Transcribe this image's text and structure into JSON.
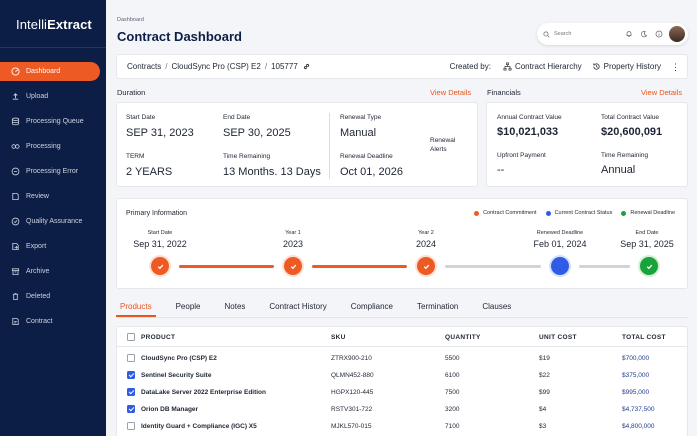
{
  "app": {
    "logo_light": "Intelli",
    "logo_bold": "Extract"
  },
  "sidebar": {
    "items": [
      {
        "label": "Dashboard",
        "icon": "dashboard-icon",
        "active": true
      },
      {
        "label": "Upload",
        "icon": "upload-icon"
      },
      {
        "label": "Processing Queue",
        "icon": "queue-icon"
      },
      {
        "label": "Processing",
        "icon": "processing-icon"
      },
      {
        "label": "Processing Error",
        "icon": "error-icon"
      },
      {
        "label": "Review",
        "icon": "review-icon"
      },
      {
        "label": "Quality Assurance",
        "icon": "quality-icon"
      },
      {
        "label": "Export",
        "icon": "export-icon"
      },
      {
        "label": "Archive",
        "icon": "archive-icon"
      },
      {
        "label": "Deleted",
        "icon": "trash-icon"
      },
      {
        "label": "Contract",
        "icon": "contract-icon"
      }
    ]
  },
  "header": {
    "breadcrumb": "Dashboard",
    "title": "Contract Dashboard",
    "search_placeholder": "Search"
  },
  "contract_bar": {
    "path": [
      "Contracts",
      "CloudSync Pro (CSP) E2",
      "105777"
    ],
    "created_by": "Created by:",
    "hierarchy": "Contract Hierarchy",
    "history": "Property History"
  },
  "duration": {
    "label": "Duration",
    "view_details": "View Details",
    "start_date_label": "Start Date",
    "start_date": "SEP 31, 2023",
    "end_date_label": "End Date",
    "end_date": "SEP 30, 2025",
    "term_label": "TERM",
    "term": "2 YEARS",
    "time_remaining_label": "Time Remaining",
    "time_remaining": "13 Months. 13 Days",
    "renewal_type_label": "Renewal Type",
    "renewal_type": "Manual",
    "renewal_deadline_label": "Renewal Deadline",
    "renewal_deadline": "Oct 01, 2026",
    "renewal_alerts_label_1": "Renewal",
    "renewal_alerts_label_2": "Alerts"
  },
  "financials": {
    "label": "Financials",
    "view_details": "View Details",
    "annual_label": "Annual Contract Value",
    "annual": "$10,021,033",
    "total_label": "Total Contract Value",
    "total": "$20,600,091",
    "upfront_label": "Upfront Payment",
    "upfront": "--",
    "time_remaining_label": "Time Remaining",
    "time_remaining": "Annual"
  },
  "primary": {
    "label": "Primary Information",
    "legend": [
      {
        "label": "Contract Commitment",
        "color": "#ee5a24"
      },
      {
        "label": "Current Contract Status",
        "color": "#2f5be6"
      },
      {
        "label": "Renewal Deadline",
        "color": "#1aa33b"
      }
    ],
    "milestones": [
      {
        "label": "Start Date",
        "date": "Sep 31, 2022"
      },
      {
        "label": "Year 1",
        "date": "2023"
      },
      {
        "label": "Year 2",
        "date": "2024"
      },
      {
        "label": "Renewed Deadline",
        "date": "Feb 01, 2024"
      },
      {
        "label": "End Date",
        "date": "Sep 31, 2025"
      }
    ]
  },
  "tabs": [
    "Products",
    "People",
    "Notes",
    "Contract History",
    "Compliance",
    "Termination",
    "Clauses"
  ],
  "table": {
    "headers": {
      "product": "PRODUCT",
      "sku": "SKU",
      "quantity": "QUANTITY",
      "unit_cost": "UNIT COST",
      "total_cost": "TOTAL COST"
    },
    "rows": [
      {
        "checked": false,
        "product": "CloudSync Pro (CSP) E2",
        "sku": "ZTRX900-210",
        "quantity": "5500",
        "unit_cost": "$19",
        "total_cost": "$700,000"
      },
      {
        "checked": true,
        "product": "Sentinel Security Suite",
        "sku": "QLMN452-880",
        "quantity": "6100",
        "unit_cost": "$22",
        "total_cost": "$375,000"
      },
      {
        "checked": true,
        "product": "DataLake Server 2022 Enterprise Edition",
        "sku": "HGPX120-445",
        "quantity": "7500",
        "unit_cost": "$99",
        "total_cost": "$995,000"
      },
      {
        "checked": true,
        "product": "Orion DB Manager",
        "sku": "RSTV301-722",
        "quantity": "3200",
        "unit_cost": "$4",
        "total_cost": "$4,737,500"
      },
      {
        "checked": false,
        "product": "Identity Guard + Compliance (IGC) X5",
        "sku": "MJKL570-015",
        "quantity": "7100",
        "unit_cost": "$3",
        "total_cost": "$4,800,000"
      }
    ]
  }
}
